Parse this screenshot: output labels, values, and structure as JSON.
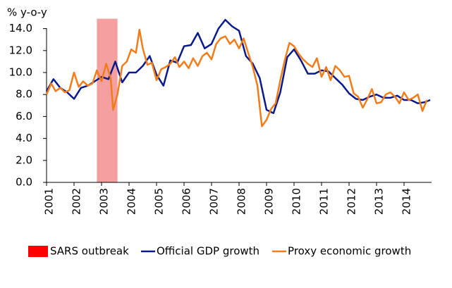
{
  "chart_data": {
    "type": "line",
    "ylabel": "% y-o-y",
    "xlim": [
      2001,
      2015
    ],
    "xticks": [
      2001,
      2002,
      2003,
      2004,
      2005,
      2006,
      2007,
      2008,
      2009,
      2010,
      2011,
      2012,
      2013,
      2014
    ],
    "ylim": [
      0,
      15
    ],
    "yticks": [
      {
        "value": 0,
        "label": "0.0"
      },
      {
        "value": 2,
        "label": "2.0"
      },
      {
        "value": 4,
        "label": "4.0"
      },
      {
        "value": 6,
        "label": "6.0"
      },
      {
        "value": 8,
        "label": "8.0"
      },
      {
        "value": 10,
        "label": "10.0"
      },
      {
        "value": 12,
        "label": "12.0"
      },
      {
        "value": 14,
        "label": "14.0"
      }
    ],
    "shaded_region": {
      "name": "SARS outbreak",
      "color": "#f4a0a0",
      "legend_color": "#ff0000",
      "x": [
        2002.83,
        2003.58
      ]
    },
    "series": [
      {
        "name": "Official GDP growth",
        "color": "#0a1a8c",
        "x": [
          2001.0,
          2001.25,
          2001.5,
          2001.75,
          2002.0,
          2002.25,
          2002.5,
          2002.75,
          2003.0,
          2003.25,
          2003.5,
          2003.75,
          2004.0,
          2004.25,
          2004.5,
          2004.75,
          2005.0,
          2005.25,
          2005.5,
          2005.75,
          2006.0,
          2006.25,
          2006.5,
          2006.75,
          2007.0,
          2007.25,
          2007.5,
          2007.75,
          2008.0,
          2008.25,
          2008.5,
          2008.75,
          2009.0,
          2009.25,
          2009.5,
          2009.75,
          2010.0,
          2010.25,
          2010.5,
          2010.75,
          2011.0,
          2011.25,
          2011.5,
          2011.75,
          2012.0,
          2012.25,
          2012.5,
          2012.75,
          2013.0,
          2013.25,
          2013.5,
          2013.75,
          2014.0,
          2014.25,
          2014.5,
          2014.75,
          2014.95
        ],
        "values": [
          8.3,
          9.4,
          8.6,
          8.2,
          7.6,
          8.6,
          8.8,
          9.2,
          9.6,
          9.4,
          11.0,
          9.1,
          10.0,
          10.0,
          10.6,
          11.5,
          9.8,
          8.8,
          11.1,
          10.9,
          12.4,
          12.5,
          13.6,
          12.2,
          12.6,
          14.0,
          14.8,
          14.2,
          13.8,
          11.5,
          10.8,
          9.5,
          6.6,
          6.3,
          8.2,
          11.4,
          12.1,
          11.1,
          9.9,
          9.9,
          10.2,
          10.1,
          9.5,
          8.9,
          8.1,
          7.6,
          7.5,
          7.8,
          8.0,
          7.7,
          7.7,
          7.9,
          7.5,
          7.5,
          7.2,
          7.3,
          7.5
        ]
      },
      {
        "name": "Proxy economic growth",
        "color": "#f07d1a",
        "x": [
          2001.0,
          2001.17,
          2001.33,
          2001.5,
          2001.67,
          2001.83,
          2002.0,
          2002.17,
          2002.33,
          2002.5,
          2002.67,
          2002.83,
          2003.0,
          2003.17,
          2003.33,
          2003.42,
          2003.58,
          2003.75,
          2003.92,
          2004.08,
          2004.25,
          2004.38,
          2004.5,
          2004.67,
          2004.83,
          2005.0,
          2005.17,
          2005.33,
          2005.5,
          2005.67,
          2005.83,
          2006.0,
          2006.17,
          2006.33,
          2006.5,
          2006.67,
          2006.83,
          2007.0,
          2007.17,
          2007.33,
          2007.5,
          2007.67,
          2007.83,
          2008.0,
          2008.17,
          2008.33,
          2008.5,
          2008.67,
          2008.83,
          2009.0,
          2009.17,
          2009.33,
          2009.5,
          2009.67,
          2009.83,
          2010.0,
          2010.17,
          2010.33,
          2010.5,
          2010.67,
          2010.83,
          2011.0,
          2011.17,
          2011.33,
          2011.5,
          2011.67,
          2011.83,
          2012.0,
          2012.17,
          2012.33,
          2012.5,
          2012.67,
          2012.83,
          2013.0,
          2013.17,
          2013.33,
          2013.5,
          2013.67,
          2013.83,
          2014.0,
          2014.17,
          2014.33,
          2014.5,
          2014.67,
          2014.83
        ],
        "values": [
          8.0,
          9.0,
          8.3,
          8.6,
          8.2,
          8.4,
          10.0,
          8.7,
          9.2,
          8.8,
          9.0,
          10.2,
          9.2,
          10.8,
          9.5,
          6.6,
          8.0,
          10.6,
          11.0,
          12.1,
          11.8,
          13.9,
          12.2,
          10.7,
          10.9,
          9.3,
          10.3,
          10.5,
          10.8,
          11.4,
          10.5,
          11.0,
          10.4,
          11.3,
          10.6,
          11.5,
          11.8,
          11.2,
          12.6,
          13.1,
          13.3,
          12.6,
          13.0,
          12.2,
          13.1,
          11.8,
          10.5,
          8.8,
          5.1,
          5.7,
          6.7,
          7.2,
          9.3,
          11.2,
          12.7,
          12.4,
          11.7,
          11.2,
          10.8,
          10.5,
          11.3,
          9.6,
          10.5,
          9.3,
          10.6,
          10.2,
          9.6,
          9.7,
          8.1,
          7.8,
          6.8,
          7.6,
          8.5,
          7.2,
          7.3,
          8.0,
          8.2,
          7.8,
          7.2,
          8.2,
          7.5,
          7.7,
          8.0,
          6.5,
          7.5
        ]
      }
    ]
  }
}
